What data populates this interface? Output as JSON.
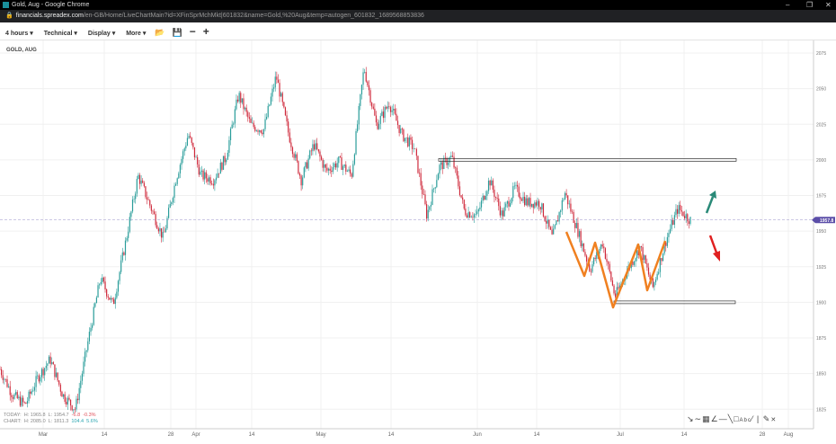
{
  "window": {
    "title": "Gold, Aug - Google Chrome",
    "url_host": "financials.spreadex.com",
    "url_path": "/en-GB/Home/LiveChartMain?id=XFinSprMchMkt|601832&name=Gold,%20Aug&temp=autogen_601832_1689568853836"
  },
  "toolbar": {
    "interval": "4 hours ▾",
    "technical": "Technical ▾",
    "display": "Display ▾",
    "more": "More ▾"
  },
  "chart": {
    "symbol": "GOLD, AUG",
    "current_price": "1957.8",
    "colors": {
      "up": "#2a9d9a",
      "down": "#cf2a3c",
      "marker": "#5b4ea8",
      "pattern": "#f08020",
      "arrow_up": "#2a8a78",
      "arrow_down": "#e02020"
    },
    "y_ticks": [
      2075,
      2050,
      2025,
      2000,
      1975,
      1950,
      1925,
      1900,
      1875,
      1850,
      1825
    ],
    "x_ticks": [
      "Mar",
      "14",
      "28",
      "Apr",
      "14",
      "May",
      "14",
      "Jun",
      "14",
      "Jul",
      "14",
      "28",
      "Aug"
    ],
    "price_path": [
      1853,
      1835,
      1828,
      1847,
      1860,
      1835,
      1825,
      1872,
      1917,
      1898,
      1942,
      1989,
      1967,
      1945,
      1986,
      2018,
      1989,
      1986,
      2002,
      2046,
      2024,
      2021,
      2059,
      2018,
      1986,
      2011,
      1992,
      1999,
      1989,
      2065,
      2024,
      2040,
      2018,
      2008,
      1961,
      1995,
      2002,
      1964,
      1961,
      1986,
      1961,
      1980,
      1970,
      1970,
      1945,
      1977,
      1951,
      1923,
      1942,
      1904,
      1923,
      1939,
      1910,
      1942,
      1966,
      1957.8
    ],
    "resistance_level": 2000,
    "support_level": 1900
  },
  "stats": {
    "today": {
      "label": "TODAY:",
      "high": "H: 1965.8",
      "low": "L: 1954.7",
      "change": "-6.8",
      "change_pct": "-0.3%"
    },
    "chart": {
      "label": "CHART:",
      "high": "H: 2085.0",
      "low": "L: 1811.3",
      "change": "104.4",
      "change_pct": "5.6%"
    }
  }
}
